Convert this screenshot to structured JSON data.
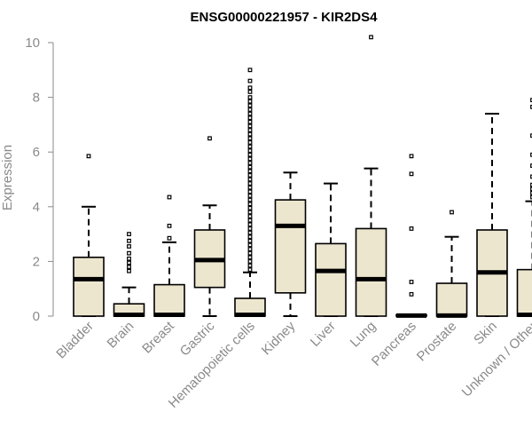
{
  "chart_data": {
    "type": "box",
    "title": "ENSG00000221957 - KIR2DS4",
    "xlabel": "",
    "ylabel": "Expression",
    "ylim": [
      0,
      10
    ],
    "yticks": [
      0,
      2,
      4,
      6,
      8,
      10
    ],
    "box_fill": "#ede6cf",
    "stroke": "#000000",
    "categories": [
      "Bladder",
      "Brain",
      "Breast",
      "Gastric",
      "Hematopoietic cells",
      "Kidney",
      "Liver",
      "Lung",
      "Pancreas",
      "Prostate",
      "Skin",
      "Unknown / Other"
    ],
    "boxes": [
      {
        "q1": 0,
        "median": 1.35,
        "q3": 2.15,
        "whisker_low": 0,
        "whisker_high": 4.0,
        "outliers": [
          5.85
        ]
      },
      {
        "q1": 0,
        "median": 0.05,
        "q3": 0.45,
        "whisker_low": 0,
        "whisker_high": 1.05,
        "outliers": [
          1.65,
          1.8,
          1.95,
          2.1,
          2.3,
          2.55,
          2.75,
          3.0
        ]
      },
      {
        "q1": 0,
        "median": 0.05,
        "q3": 1.15,
        "whisker_low": 0,
        "whisker_high": 2.7,
        "outliers": [
          2.85,
          3.3,
          4.35
        ]
      },
      {
        "q1": 1.05,
        "median": 2.05,
        "q3": 3.15,
        "whisker_low": 0,
        "whisker_high": 4.05,
        "outliers": [
          6.5
        ]
      },
      {
        "q1": 0,
        "median": 0.05,
        "q3": 0.65,
        "whisker_low": 0,
        "whisker_high": 1.6,
        "outliers": [
          1.7,
          1.85,
          2.0,
          2.15,
          2.3,
          2.45,
          2.6,
          2.75,
          2.9,
          3.05,
          3.2,
          3.35,
          3.5,
          3.65,
          3.8,
          3.95,
          4.1,
          4.25,
          4.4,
          4.55,
          4.7,
          4.85,
          5.0,
          5.15,
          5.3,
          5.45,
          5.6,
          5.75,
          5.9,
          6.05,
          6.2,
          6.35,
          6.5,
          6.65,
          6.8,
          6.95,
          7.1,
          7.25,
          7.4,
          7.55,
          7.7,
          7.85,
          8.0,
          8.2,
          8.35,
          8.6,
          9.0
        ]
      },
      {
        "q1": 0.85,
        "median": 3.3,
        "q3": 4.25,
        "whisker_low": 0,
        "whisker_high": 5.25,
        "outliers": []
      },
      {
        "q1": 0,
        "median": 1.65,
        "q3": 2.65,
        "whisker_low": 0,
        "whisker_high": 4.85,
        "outliers": []
      },
      {
        "q1": 0,
        "median": 1.35,
        "q3": 3.2,
        "whisker_low": 0,
        "whisker_high": 5.4,
        "outliers": [
          10.2
        ]
      },
      {
        "q1": 0,
        "median": 0.02,
        "q3": 0.05,
        "whisker_low": 0,
        "whisker_high": 0.05,
        "outliers": [
          0.8,
          1.25,
          3.2,
          5.2,
          5.85
        ]
      },
      {
        "q1": 0,
        "median": 0.02,
        "q3": 1.2,
        "whisker_low": 0,
        "whisker_high": 2.9,
        "outliers": [
          3.8
        ]
      },
      {
        "q1": 0,
        "median": 1.6,
        "q3": 3.15,
        "whisker_low": 0,
        "whisker_high": 7.4,
        "outliers": []
      },
      {
        "q1": 0,
        "median": 0.05,
        "q3": 1.7,
        "whisker_low": 0,
        "whisker_high": 4.2,
        "outliers": [
          4.35,
          4.5,
          4.65,
          4.8,
          5.1,
          5.5,
          5.9,
          6.6,
          7.65,
          7.9
        ]
      }
    ]
  }
}
